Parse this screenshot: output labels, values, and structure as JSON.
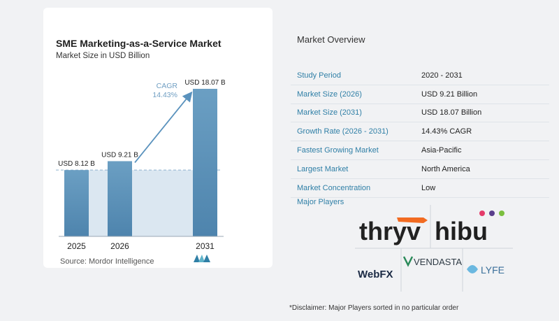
{
  "chart": {
    "title": "SME Marketing-as-a-Service Market",
    "subtitle": "Market Size in USD Billion",
    "source": "Source:  Mordor Intelligence",
    "cagr_label": "CAGR",
    "cagr_value": "14.43%"
  },
  "chart_data": {
    "type": "bar",
    "title": "SME Marketing-as-a-Service Market",
    "subtitle": "Market Size in USD Billion",
    "categories": [
      "2025",
      "2026",
      "2031"
    ],
    "values": [
      8.12,
      9.21,
      18.07
    ],
    "data_labels": [
      "USD 8.12 B",
      "USD 9.21 B",
      "USD 18.07 B"
    ],
    "ylim": [
      0,
      18.07
    ],
    "grid": false,
    "annotation": {
      "label": "CAGR",
      "value": "14.43%",
      "from": "2026",
      "to": "2031"
    },
    "colors": {
      "bar_top": "#6b9fc3",
      "bar_bottom": "#4e84ad",
      "area": "#dbe7f1",
      "arrow": "#5a92bd"
    }
  },
  "overview": {
    "title": "Market Overview",
    "rows": [
      {
        "label": "Study Period",
        "value": "2020 - 2031"
      },
      {
        "label": "Market Size (2026)",
        "value": "USD 9.21 Billion"
      },
      {
        "label": "Market Size (2031)",
        "value": "USD 18.07 Billion"
      },
      {
        "label": "Growth Rate (2026 - 2031)",
        "value": "14.43% CAGR"
      },
      {
        "label": "Fastest Growing Market",
        "value": "Asia-Pacific"
      },
      {
        "label": "Largest Market",
        "value": "North America"
      },
      {
        "label": "Market Concentration",
        "value": "Low"
      }
    ],
    "players_label": "Major Players",
    "players": [
      "thryv",
      "hibu",
      "WebFX",
      "VENDASTA",
      "LYFE"
    ],
    "disclaimer": "*Disclaimer: Major Players sorted in no particular order"
  }
}
